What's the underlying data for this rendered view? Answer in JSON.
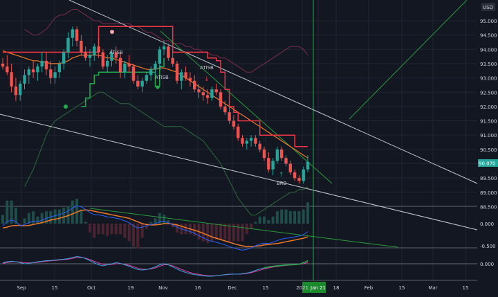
{
  "chart_data": {
    "type": "candlestick",
    "currency_label": "USD",
    "last_price_label": "90.070",
    "y_ticks": [
      "95.000",
      "94.500",
      "94.000",
      "93.500",
      "93.000",
      "92.500",
      "92.000",
      "91.500",
      "91.000",
      "90.500",
      "90.000",
      "89.500",
      "89.000",
      "88.500"
    ],
    "y_range": [
      88.5,
      95.0
    ],
    "x_ticks": [
      "Sep",
      "15",
      "Oct",
      "19",
      "Nov",
      "16",
      "Dec",
      "15",
      "2021",
      "Jan 21",
      "18",
      "Feb",
      "15",
      "Mar",
      "15"
    ],
    "macd_ticks": [
      "0.000",
      "-0.500"
    ],
    "osc_ticks": [
      "0.000"
    ],
    "annotations": [
      "ATISB",
      "ATISB",
      "ATISB",
      "BRB"
    ],
    "candles": [
      [
        93.5,
        93.7,
        93.3,
        93.4
      ],
      [
        93.4,
        93.8,
        93.1,
        93.2
      ],
      [
        93.2,
        93.5,
        92.5,
        92.7
      ],
      [
        92.7,
        93.0,
        92.2,
        92.4
      ],
      [
        92.4,
        92.9,
        92.2,
        92.8
      ],
      [
        92.8,
        93.3,
        92.6,
        93.1
      ],
      [
        93.1,
        93.4,
        92.8,
        93.3
      ],
      [
        93.3,
        93.6,
        93.0,
        93.2
      ],
      [
        93.2,
        93.5,
        92.9,
        93.4
      ],
      [
        93.4,
        93.9,
        93.2,
        93.6
      ],
      [
        93.6,
        93.9,
        93.1,
        93.3
      ],
      [
        93.3,
        93.6,
        92.8,
        93.0
      ],
      [
        93.0,
        93.4,
        92.8,
        93.2
      ],
      [
        93.2,
        93.6,
        93.0,
        93.5
      ],
      [
        93.5,
        94.0,
        93.3,
        93.9
      ],
      [
        93.9,
        94.6,
        93.7,
        94.4
      ],
      [
        94.4,
        94.8,
        94.1,
        94.7
      ],
      [
        94.7,
        94.8,
        94.1,
        94.3
      ],
      [
        94.3,
        94.5,
        93.8,
        93.9
      ],
      [
        93.9,
        94.1,
        93.6,
        93.7
      ],
      [
        93.7,
        94.0,
        93.4,
        93.8
      ],
      [
        93.8,
        94.2,
        93.6,
        94.1
      ],
      [
        94.1,
        94.4,
        93.7,
        93.9
      ],
      [
        93.9,
        94.0,
        93.3,
        93.4
      ],
      [
        93.4,
        93.8,
        93.2,
        93.6
      ],
      [
        93.6,
        94.0,
        93.4,
        93.9
      ],
      [
        93.9,
        94.1,
        93.5,
        93.7
      ],
      [
        93.7,
        93.9,
        93.0,
        93.2
      ],
      [
        93.2,
        93.6,
        93.0,
        93.5
      ],
      [
        93.5,
        93.8,
        93.2,
        93.4
      ],
      [
        93.4,
        93.5,
        92.8,
        92.9
      ],
      [
        92.9,
        93.1,
        92.6,
        92.7
      ],
      [
        92.7,
        93.0,
        92.5,
        92.9
      ],
      [
        92.9,
        93.2,
        92.8,
        93.1
      ],
      [
        93.1,
        93.4,
        92.9,
        93.3
      ],
      [
        93.3,
        93.6,
        93.1,
        93.5
      ],
      [
        93.5,
        94.1,
        93.3,
        94.0
      ],
      [
        94.0,
        94.3,
        93.8,
        94.1
      ],
      [
        94.1,
        94.2,
        93.6,
        93.7
      ],
      [
        93.7,
        93.9,
        93.4,
        93.5
      ],
      [
        93.5,
        93.6,
        92.8,
        92.9
      ],
      [
        92.9,
        93.3,
        92.6,
        93.2
      ],
      [
        93.2,
        93.4,
        92.9,
        93.0
      ],
      [
        93.0,
        93.2,
        92.7,
        92.9
      ],
      [
        92.9,
        93.1,
        92.5,
        92.6
      ],
      [
        92.6,
        92.8,
        92.3,
        92.5
      ],
      [
        92.5,
        92.7,
        92.2,
        92.4
      ],
      [
        92.4,
        92.6,
        92.1,
        92.3
      ],
      [
        92.3,
        92.7,
        92.2,
        92.6
      ],
      [
        92.6,
        92.8,
        92.4,
        92.5
      ],
      [
        92.5,
        92.6,
        91.9,
        92.0
      ],
      [
        92.0,
        92.2,
        91.7,
        91.8
      ],
      [
        91.8,
        92.0,
        91.4,
        91.5
      ],
      [
        91.5,
        91.7,
        91.2,
        91.3
      ],
      [
        91.3,
        91.4,
        90.8,
        90.9
      ],
      [
        90.9,
        91.0,
        90.6,
        90.7
      ],
      [
        90.7,
        90.9,
        90.5,
        90.8
      ],
      [
        90.8,
        91.0,
        90.6,
        90.9
      ],
      [
        90.9,
        91.0,
        90.6,
        90.7
      ],
      [
        90.7,
        90.8,
        90.4,
        90.5
      ],
      [
        90.5,
        90.6,
        90.1,
        90.2
      ],
      [
        90.2,
        90.4,
        89.7,
        89.8
      ],
      [
        89.8,
        90.2,
        89.6,
        90.1
      ],
      [
        90.1,
        90.6,
        90.0,
        90.5
      ],
      [
        90.5,
        90.6,
        90.1,
        90.2
      ],
      [
        90.2,
        90.3,
        89.9,
        90.0
      ],
      [
        90.0,
        90.1,
        89.6,
        89.7
      ],
      [
        89.7,
        89.8,
        89.4,
        89.5
      ],
      [
        89.5,
        89.6,
        89.3,
        89.4
      ],
      [
        89.4,
        89.9,
        89.3,
        89.8
      ],
      [
        89.8,
        90.3,
        89.7,
        90.07
      ]
    ],
    "pink_line": [
      93.9,
      93.9,
      93.9,
      93.9,
      93.9,
      93.9,
      93.9,
      93.9,
      93.9,
      93.9,
      93.9,
      93.9,
      93.9,
      93.9,
      93.9,
      93.9,
      93.9,
      93.9,
      93.9,
      93.9,
      93.9,
      93.9,
      94.8,
      94.8,
      94.8,
      94.8,
      94.8,
      94.8,
      94.8,
      94.8,
      94.8,
      94.8,
      94.8,
      94.8,
      94.8,
      94.8,
      94.8,
      94.8,
      94.8,
      93.9,
      93.9,
      93.9,
      93.9,
      93.9,
      93.9,
      93.9,
      93.9,
      93.7,
      93.7,
      93.6,
      93.2,
      92.6,
      92.0,
      91.8,
      91.5,
      91.5,
      91.5,
      91.5,
      91.5,
      91.0,
      91.0,
      91.0,
      91.0,
      91.0,
      91.0,
      91.0,
      91.0,
      90.6,
      90.6,
      90.6,
      90.6
    ],
    "green_line": [
      null,
      null,
      null,
      null,
      null,
      null,
      null,
      null,
      null,
      null,
      null,
      null,
      null,
      null,
      null,
      null,
      null,
      null,
      92.0,
      92.3,
      92.8,
      93.1,
      93.2,
      93.2,
      93.2,
      93.2,
      93.2,
      93.2,
      93.2,
      93.2,
      93.2,
      93.2,
      93.2,
      93.2,
      93.2,
      92.7,
      93.4,
      93.7,
      null
    ],
    "ma_orange": [
      93.95,
      93.9,
      93.85,
      93.8,
      93.75,
      93.7,
      93.65,
      93.6,
      93.6,
      93.55,
      93.55,
      93.5,
      93.5,
      93.5,
      93.55,
      93.6,
      93.7,
      93.75,
      93.8,
      93.8,
      93.8,
      93.8,
      93.8,
      93.75,
      93.7,
      93.7,
      93.65,
      93.6,
      93.55,
      93.5,
      93.45,
      93.4,
      93.35,
      93.3,
      93.3,
      93.3,
      93.35,
      93.35,
      93.3,
      93.25,
      93.2,
      93.1,
      93.0,
      92.9,
      92.8,
      92.7,
      92.6,
      92.5,
      92.4,
      92.3,
      92.2,
      92.1,
      92.0,
      91.9,
      91.8,
      91.7,
      91.6,
      91.5,
      91.4,
      91.3,
      91.2,
      91.1,
      91.0,
      90.9,
      90.8,
      90.7,
      90.6,
      90.5,
      90.4,
      90.3,
      90.2
    ],
    "bb_upper": [
      null,
      null,
      null,
      null,
      null,
      94.7,
      94.6,
      94.5,
      94.5,
      94.6,
      94.7,
      94.9,
      95.1,
      95.2,
      95.2,
      95.3,
      95.4,
      95.4,
      95.3,
      95.2,
      95.1,
      95.0,
      95.0,
      94.9,
      94.9,
      94.9,
      94.9,
      94.9,
      94.9,
      94.9,
      94.8,
      94.8,
      94.7,
      94.6,
      94.6,
      94.5,
      94.4,
      94.3,
      94.3,
      94.2,
      94.2,
      94.2,
      94.1,
      94.1,
      94.0,
      94.0,
      93.9,
      93.9,
      93.8,
      93.8,
      93.7,
      93.7,
      93.6,
      93.5,
      93.4,
      93.3,
      93.2,
      93.2,
      93.3,
      93.4,
      93.5,
      93.6,
      93.7,
      93.8,
      93.9,
      94.0,
      94.1,
      94.1,
      94.1,
      94.0,
      93.8
    ],
    "bb_lower": [
      null,
      null,
      null,
      null,
      null,
      89.2,
      89.5,
      89.8,
      90.2,
      90.6,
      91.0,
      91.3,
      91.5,
      91.6,
      91.7,
      91.8,
      91.9,
      92.0,
      92.1,
      92.2,
      92.3,
      92.4,
      92.5,
      92.5,
      92.4,
      92.3,
      92.2,
      92.1,
      92.1,
      92.1,
      92.0,
      91.9,
      91.8,
      91.7,
      91.6,
      91.5,
      91.4,
      91.3,
      91.3,
      91.3,
      91.3,
      91.3,
      91.2,
      91.1,
      91.0,
      90.9,
      90.8,
      90.6,
      90.4,
      90.2,
      90.0,
      89.7,
      89.4,
      89.1,
      88.8,
      88.6,
      88.4,
      88.2,
      88.2,
      88.3,
      88.4,
      88.5,
      88.6,
      88.7,
      88.8,
      88.9,
      89.0,
      89.0,
      89.1,
      89.1,
      89.2
    ],
    "macd_line": [
      -0.05,
      0.05,
      0.08,
      0.05,
      -0.05,
      -0.02,
      0.02,
      0.05,
      0.04,
      0.08,
      0.12,
      0.15,
      0.18,
      0.2,
      0.24,
      0.28,
      0.35,
      0.4,
      0.38,
      0.32,
      0.25,
      0.2,
      0.2,
      0.18,
      0.15,
      0.14,
      0.12,
      0.1,
      0.06,
      0.02,
      -0.05,
      -0.1,
      -0.08,
      -0.05,
      -0.02,
      0.0,
      0.04,
      0.05,
      0.02,
      -0.03,
      -0.08,
      -0.12,
      -0.15,
      -0.18,
      -0.22,
      -0.27,
      -0.32,
      -0.37,
      -0.4,
      -0.42,
      -0.45,
      -0.48,
      -0.52,
      -0.55,
      -0.58,
      -0.6,
      -0.58,
      -0.55,
      -0.5,
      -0.46,
      -0.44,
      -0.45,
      -0.42,
      -0.38,
      -0.35,
      -0.33,
      -0.32,
      -0.3,
      -0.28,
      -0.25,
      -0.18
    ],
    "macd_signal": [
      -0.1,
      -0.08,
      -0.05,
      -0.04,
      -0.04,
      -0.05,
      -0.04,
      -0.02,
      0.0,
      0.02,
      0.05,
      0.08,
      0.1,
      0.12,
      0.15,
      0.18,
      0.22,
      0.26,
      0.3,
      0.31,
      0.3,
      0.28,
      0.26,
      0.24,
      0.22,
      0.2,
      0.18,
      0.16,
      0.14,
      0.12,
      0.08,
      0.04,
      0.0,
      -0.02,
      -0.03,
      -0.03,
      -0.02,
      0.0,
      0.0,
      -0.01,
      -0.03,
      -0.06,
      -0.09,
      -0.12,
      -0.15,
      -0.18,
      -0.22,
      -0.26,
      -0.3,
      -0.33,
      -0.36,
      -0.39,
      -0.42,
      -0.45,
      -0.48,
      -0.5,
      -0.52,
      -0.52,
      -0.51,
      -0.5,
      -0.48,
      -0.47,
      -0.46,
      -0.45,
      -0.43,
      -0.41,
      -0.39,
      -0.37,
      -0.35,
      -0.33,
      -0.3
    ],
    "osc_a": [
      0.05,
      0.1,
      0.12,
      0.1,
      0.05,
      0.0,
      0.02,
      0.06,
      0.1,
      0.12,
      0.15,
      0.16,
      0.18,
      0.2,
      0.22,
      0.25,
      0.3,
      0.35,
      0.32,
      0.25,
      0.15,
      0.05,
      -0.05,
      -0.1,
      -0.05,
      0.0,
      0.05,
      0.02,
      -0.05,
      -0.12,
      -0.2,
      -0.28,
      -0.3,
      -0.28,
      -0.22,
      -0.15,
      -0.05,
      0.0,
      -0.05,
      -0.15,
      -0.25,
      -0.35,
      -0.42,
      -0.48,
      -0.52,
      -0.55,
      -0.58,
      -0.6,
      -0.6,
      -0.58,
      -0.55,
      -0.52,
      -0.5,
      -0.5,
      -0.5,
      -0.48,
      -0.45,
      -0.4,
      -0.32,
      -0.25,
      -0.2,
      -0.15,
      -0.12,
      -0.1,
      -0.08,
      -0.06,
      -0.05,
      -0.04,
      -0.02,
      0.05,
      0.15
    ],
    "osc_b": [
      0.02,
      0.06,
      0.09,
      0.1,
      0.08,
      0.05,
      0.04,
      0.05,
      0.07,
      0.1,
      0.12,
      0.14,
      0.16,
      0.18,
      0.2,
      0.22,
      0.26,
      0.3,
      0.3,
      0.27,
      0.2,
      0.12,
      0.04,
      -0.03,
      -0.05,
      -0.03,
      0.0,
      0.01,
      -0.02,
      -0.07,
      -0.14,
      -0.21,
      -0.26,
      -0.27,
      -0.25,
      -0.2,
      -0.12,
      -0.05,
      -0.05,
      -0.1,
      -0.18,
      -0.27,
      -0.35,
      -0.42,
      -0.47,
      -0.51,
      -0.55,
      -0.57,
      -0.58,
      -0.57,
      -0.55,
      -0.53,
      -0.51,
      -0.5,
      -0.5,
      -0.49,
      -0.47,
      -0.43,
      -0.37,
      -0.31,
      -0.25,
      -0.2,
      -0.16,
      -0.13,
      -0.1,
      -0.08,
      -0.06,
      -0.05,
      -0.03,
      0.0,
      0.06
    ]
  }
}
